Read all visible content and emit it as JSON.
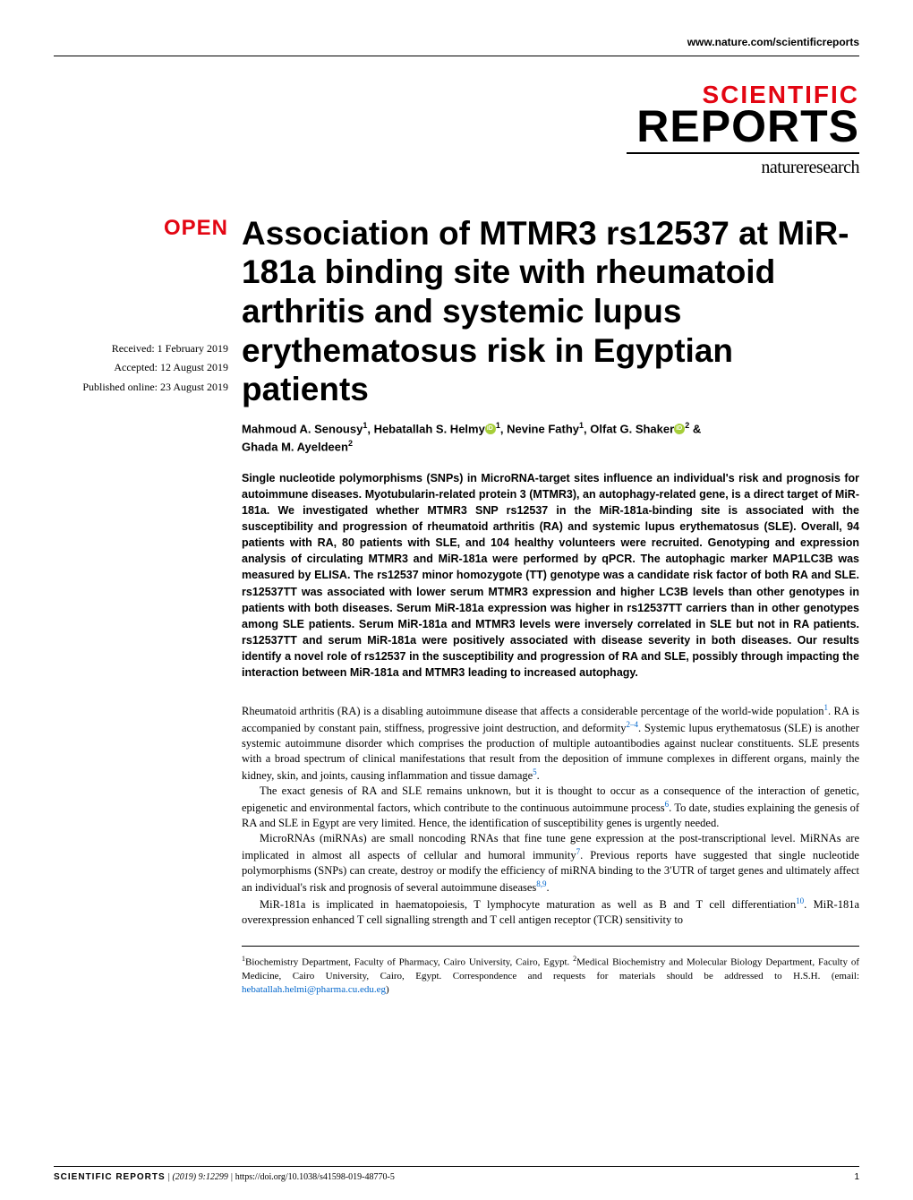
{
  "header": {
    "url": "www.nature.com/scientificreports",
    "logo_scientific": "SCIENTIFIC",
    "logo_reports": "REPORTS",
    "logo_nature": "natureresearch",
    "logo_scientific_color": "#e30613"
  },
  "badge": {
    "open": "OPEN",
    "color": "#e30613"
  },
  "dates": {
    "received": "Received: 1 February 2019",
    "accepted": "Accepted: 12 August 2019",
    "published": "Published online: 23 August 2019"
  },
  "title": "Association of MTMR3 rs12537 at MiR-181a binding site with rheumatoid arthritis and systemic lupus erythematosus risk in Egyptian patients",
  "authors": {
    "a1_name": "Mahmoud A. Senousy",
    "a1_sup": "1",
    "a2_name": "Hebatallah S. Helmy",
    "a2_sup": "1",
    "a3_name": "Nevine Fathy",
    "a3_sup": "1",
    "a4_name": "Olfat G. Shaker",
    "a4_sup": "2",
    "a5_name": "Ghada M. Ayeldeen",
    "a5_sup": "2",
    "amp": " & "
  },
  "abstract": "Single nucleotide polymorphisms (SNPs) in MicroRNA-target sites influence an individual's risk and prognosis for autoimmune diseases. Myotubularin-related protein 3 (MTMR3), an autophagy-related gene, is a direct target of MiR-181a. We investigated whether MTMR3 SNP rs12537 in the MiR-181a-binding site is associated with the susceptibility and progression of rheumatoid arthritis (RA) and systemic lupus erythematosus (SLE). Overall, 94 patients with RA, 80 patients with SLE, and 104 healthy volunteers were recruited. Genotyping and expression analysis of circulating MTMR3 and MiR-181a were performed by qPCR. The autophagic marker MAP1LC3B was measured by ELISA. The rs12537 minor homozygote (TT) genotype was a candidate risk factor of both RA and SLE. rs12537TT was associated with lower serum MTMR3 expression and higher LC3B levels than other genotypes in patients with both diseases. Serum MiR-181a expression was higher in rs12537TT carriers than in other genotypes among SLE patients. Serum MiR-181a and MTMR3 levels were inversely correlated in SLE but not in RA patients. rs12537TT and serum MiR-181a were positively associated with disease severity in both diseases. Our results identify a novel role of rs12537 in the susceptibility and progression of RA and SLE, possibly through impacting the interaction between MiR-181a and MTMR3 leading to increased autophagy.",
  "body": {
    "p1_a": "Rheumatoid arthritis (RA) is a disabling autoimmune disease that affects a considerable percentage of the world-wide population",
    "p1_ref1": "1",
    "p1_b": ". RA is accompanied by constant pain, stiffness, progressive joint destruction, and deformity",
    "p1_ref2": "2–4",
    "p1_c": ". Systemic lupus erythematosus (SLE) is another systemic autoimmune disorder which comprises the production of multiple autoantibodies against nuclear constituents. SLE presents with a broad spectrum of clinical manifestations that result from the deposition of immune complexes in different organs, mainly the kidney, skin, and joints, causing inflammation and tissue damage",
    "p1_ref3": "5",
    "p1_d": ".",
    "p2_a": "The exact genesis of RA and SLE remains unknown, but it is thought to occur as a consequence of the interaction of genetic, epigenetic and environmental factors, which contribute to the continuous autoimmune process",
    "p2_ref1": "6",
    "p2_b": ". To date, studies explaining the genesis of RA and SLE in Egypt are very limited. Hence, the identification of susceptibility genes is urgently needed.",
    "p3_a": "MicroRNAs (miRNAs) are small noncoding RNAs that fine tune gene expression at the post-transcriptional level. MiRNAs are implicated in almost all aspects of cellular and humoral immunity",
    "p3_ref1": "7",
    "p3_b": ". Previous reports have suggested that single nucleotide polymorphisms (SNPs) can create, destroy or modify the efficiency of miRNA binding to the 3′UTR of target genes and ultimately affect an individual's risk and prognosis of several autoimmune diseases",
    "p3_ref2": "8,9",
    "p3_c": ".",
    "p4_a": "MiR-181a is implicated in haematopoiesis, T lymphocyte maturation as well as B and T cell differentiation",
    "p4_ref1": "10",
    "p4_b": ". MiR-181a overexpression enhanced T cell signalling strength and T cell antigen receptor (TCR) sensitivity to"
  },
  "affiliations": {
    "aff1_sup": "1",
    "aff1": "Biochemistry Department, Faculty of Pharmacy, Cairo University, Cairo, Egypt. ",
    "aff2_sup": "2",
    "aff2": "Medical Biochemistry and Molecular Biology Department, Faculty of Medicine, Cairo University, Cairo, Egypt. Correspondence and requests for materials should be addressed to H.S.H. (email: ",
    "email": "hebatallah.helmi@pharma.cu.edu.eg",
    "close": ")"
  },
  "footer": {
    "journal": "SCIENTIFIC REPORTS",
    "sep": " |          ",
    "citation": "(2019) 9:12299  | ",
    "doi": "https://doi.org/10.1038/s41598-019-48770-5",
    "page": "1"
  },
  "style": {
    "title_fontsize": 37,
    "abstract_fontsize": 12.5,
    "body_fontsize": 12.5,
    "link_color": "#0066cc",
    "orcid_color": "#a6ce39"
  }
}
